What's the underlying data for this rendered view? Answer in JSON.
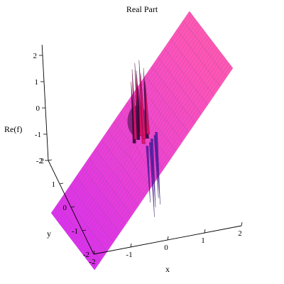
{
  "chart_data": {
    "type": "surface3d",
    "title": "Real Part",
    "xlabel": "x",
    "ylabel": "y",
    "zlabel": "Re(f)",
    "x_ticks": [
      "-2",
      "-1",
      "0",
      "1",
      "2"
    ],
    "y_ticks": [
      "-2",
      "-1",
      "0",
      "1",
      "2"
    ],
    "z_ticks": [
      "-2",
      "-1",
      "0",
      "1",
      "2"
    ],
    "xlim": [
      -2,
      2
    ],
    "ylim": [
      -2,
      2
    ],
    "zlim": [
      -2,
      2
    ],
    "surface_color": "#ee33ee",
    "surface_highlight": "#ff55cc",
    "surface_shadow": "#7a1070",
    "spike_color": "#dd1166",
    "spike_shadow": "#3a0a40",
    "grid_color": "#8a2a8a",
    "shape_note": "plane rising with x, singular near the origin"
  }
}
